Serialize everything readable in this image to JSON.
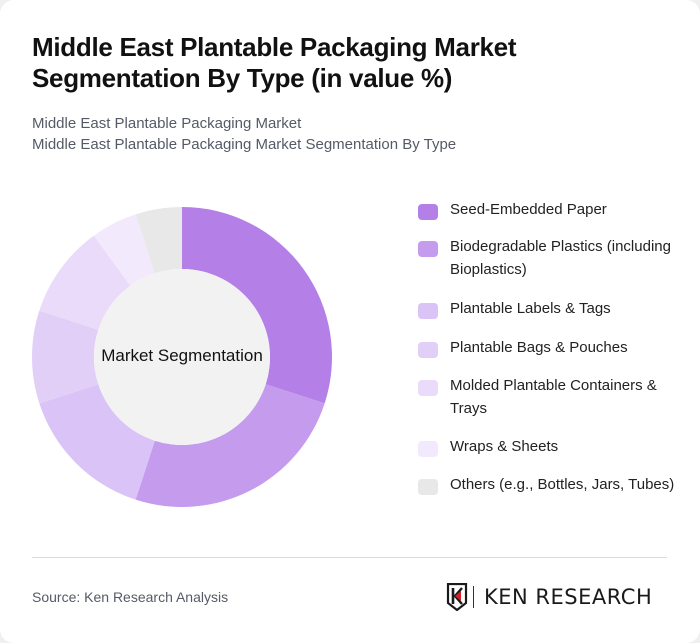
{
  "header": {
    "title": "Middle East Plantable Packaging Market Segmentation By Type (in value %)",
    "subtitle_line1": "Middle East Plantable Packaging Market",
    "subtitle_line2": "Middle East Plantable Packaging Market Segmentation By Type"
  },
  "chart": {
    "center_label": "Market Segmentation"
  },
  "legend": {
    "items": [
      {
        "label": "Seed-Embedded Paper",
        "color": "#b57fe8"
      },
      {
        "label": "Biodegradable Plastics (including Bioplastics)",
        "color": "#c59bee"
      },
      {
        "label": "Plantable Labels & Tags",
        "color": "#dac3f6"
      },
      {
        "label": "Plantable Bags & Pouches",
        "color": "#e2cff7"
      },
      {
        "label": "Molded Plantable Containers & Trays",
        "color": "#e9dbf9"
      },
      {
        "label": "Wraps & Sheets",
        "color": "#f2eafc"
      },
      {
        "label": "Others (e.g., Bottles, Jars, Tubes)",
        "color": "#e8e8e8"
      }
    ]
  },
  "footer": {
    "source": "Source: Ken Research Analysis",
    "logo_text": "KEN RESEARCH",
    "logo_icon": "ken-research-k-shield-icon"
  },
  "chart_data": {
    "type": "pie",
    "subtype": "donut",
    "title": "Middle East Plantable Packaging Market Segmentation By Type (in value %)",
    "subtitle": "Middle East Plantable Packaging Market Segmentation By Type",
    "center_label": "Market Segmentation",
    "categories": [
      "Seed-Embedded Paper",
      "Biodegradable Plastics (including Bioplastics)",
      "Plantable Labels & Tags",
      "Plantable Bags & Pouches",
      "Molded Plantable Containers & Trays",
      "Wraps & Sheets",
      "Others (e.g., Bottles, Jars, Tubes)"
    ],
    "values": [
      30,
      25,
      15,
      10,
      10,
      5,
      5
    ],
    "unit": "%",
    "colors": [
      "#b57fe8",
      "#c59bee",
      "#dac3f6",
      "#e2cff7",
      "#e9dbf9",
      "#f2eafc",
      "#e8e8e8"
    ],
    "start_angle_deg": 0,
    "direction": "clockwise",
    "legend_position": "right",
    "data_labels": false,
    "source": "Source: Ken Research Analysis"
  }
}
